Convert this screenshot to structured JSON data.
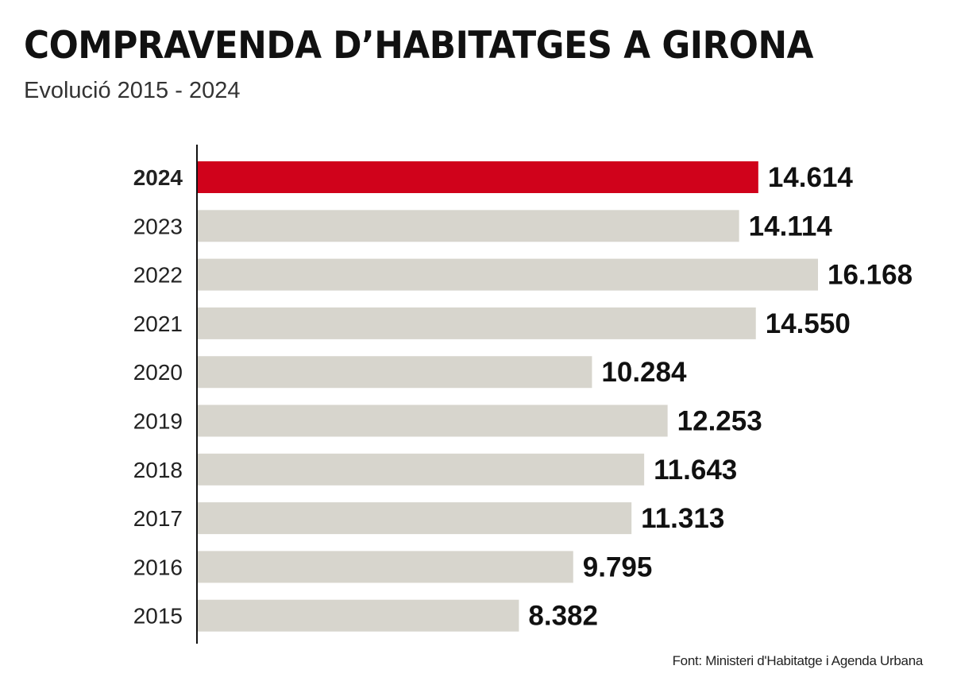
{
  "chart_data": {
    "type": "bar",
    "orientation": "horizontal",
    "title": "COMPRAVENDA D’HABITATGES A GIRONA",
    "subtitle": "Evolució 2015 - 2024",
    "source": "Font: Ministeri d'Habitatge i Agenda Urbana",
    "categories": [
      "2024",
      "2023",
      "2022",
      "2021",
      "2020",
      "2019",
      "2018",
      "2017",
      "2016",
      "2015"
    ],
    "values": [
      14614,
      14114,
      16168,
      14550,
      10284,
      12253,
      11643,
      11313,
      9795,
      8382
    ],
    "labels": [
      "14.614",
      "14.114",
      "16.168",
      "14.550",
      "10.284",
      "12.253",
      "11.643",
      "11.313",
      "9.795",
      "8.382"
    ],
    "highlight": "2024",
    "xlim": [
      0,
      16168
    ],
    "grid": false,
    "colors": {
      "highlight": "#d0021b",
      "default": "#d7d5cd",
      "axis": "#111111"
    }
  }
}
